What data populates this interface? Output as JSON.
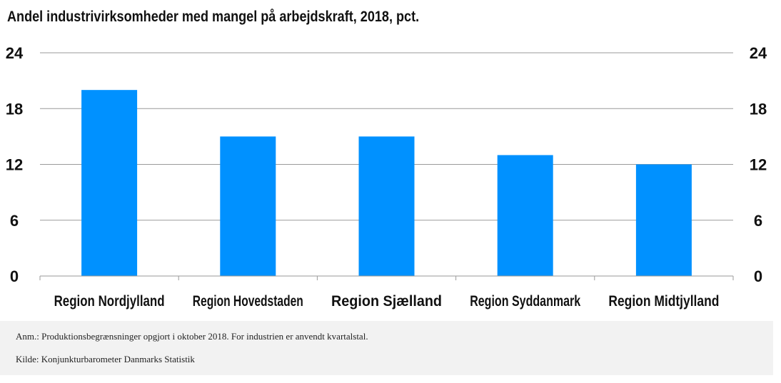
{
  "chart_data": {
    "type": "bar",
    "title": "Andel industrivirksomheder med mangel på arbejdskraft, 2018, pct.",
    "categories": [
      "Region Nordjylland",
      "Region Hovedstaden",
      "Region Sjælland",
      "Region Syddanmark",
      "Region Midtjylland"
    ],
    "values": [
      20,
      15,
      15,
      13,
      12
    ],
    "ylim": [
      0,
      24
    ],
    "yticks": [
      0,
      6,
      12,
      18,
      24
    ],
    "xlabel": "",
    "ylabel": "",
    "grid": true,
    "bar_color": "#0091ff"
  },
  "notes": {
    "anm": "Anm.: Produktionsbegrænsninger opgjort i oktober 2018. For industrien er anvendt kvartalstal.",
    "kilde": "Kilde: Konjunkturbarometer Danmarks Statistik"
  }
}
